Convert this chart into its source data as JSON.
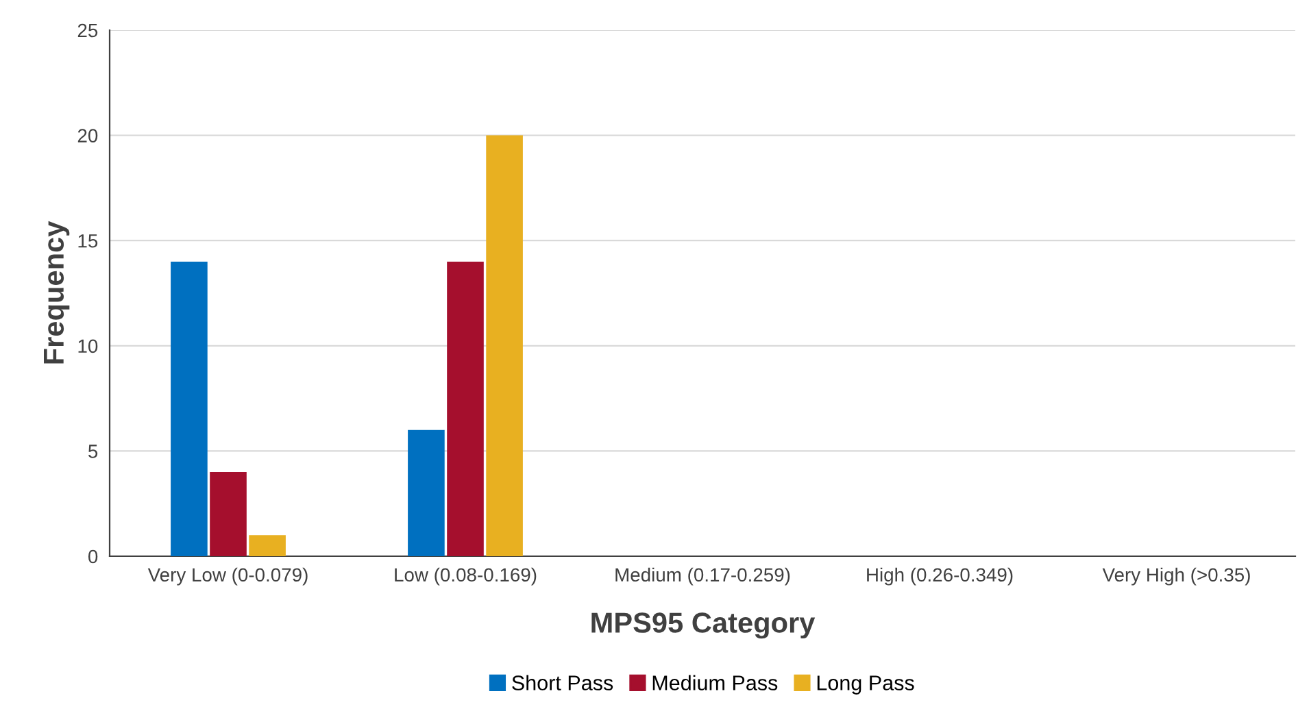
{
  "chart_data": {
    "type": "bar",
    "xlabel": "MPS95 Category",
    "ylabel": "Frequency",
    "categories": [
      "Very Low (0-0.079)",
      "Low (0.08-0.169)",
      "Medium (0.17-0.259)",
      "High (0.26-0.349)",
      "Very High (>0.35)"
    ],
    "series": [
      {
        "name": "Short Pass",
        "color": "#0070c0",
        "values": [
          14,
          6,
          0,
          0,
          0
        ]
      },
      {
        "name": "Medium Pass",
        "color": "#a50f2d",
        "values": [
          4,
          14,
          0,
          0,
          0
        ]
      },
      {
        "name": "Long Pass",
        "color": "#e8b021",
        "values": [
          1,
          20,
          0,
          0,
          0
        ]
      }
    ],
    "ylim": [
      0,
      25
    ],
    "yticks": [
      0,
      5,
      10,
      15,
      20,
      25
    ],
    "grid": "y",
    "legend": "bottom"
  }
}
